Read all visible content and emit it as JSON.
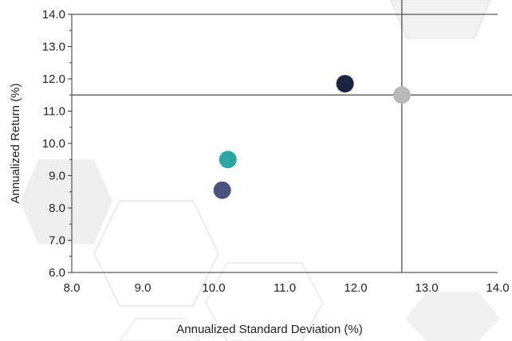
{
  "chart_data": {
    "type": "scatter",
    "title": "",
    "xlabel": "Annualized Standard Deviation (%)",
    "ylabel": "Annualized Return (%)",
    "xlim": [
      8.0,
      14.0
    ],
    "ylim": [
      6.0,
      14.0
    ],
    "x_ticks": [
      "8.0",
      "9.0",
      "10.0",
      "11.0",
      "12.0",
      "13.0",
      "14.0"
    ],
    "y_ticks": [
      "6.0",
      "7.0",
      "8.0",
      "9.0",
      "10.0",
      "11.0",
      "12.0",
      "13.0",
      "14.0"
    ],
    "grid": false,
    "legend": "none",
    "reference_lines": {
      "x": 12.65,
      "y": 11.5
    },
    "points": [
      {
        "x": 11.85,
        "y": 11.85,
        "color": "#1b2540"
      },
      {
        "x": 12.65,
        "y": 11.5,
        "color": "#b9b9b9"
      },
      {
        "x": 10.2,
        "y": 9.5,
        "color": "#2aa7a4"
      },
      {
        "x": 10.12,
        "y": 8.55,
        "color": "#4a5380"
      }
    ],
    "colors": {
      "axis": "#333333",
      "reference_line": "#666666",
      "text": "#222222",
      "background_hexagon": "#ececec"
    }
  }
}
